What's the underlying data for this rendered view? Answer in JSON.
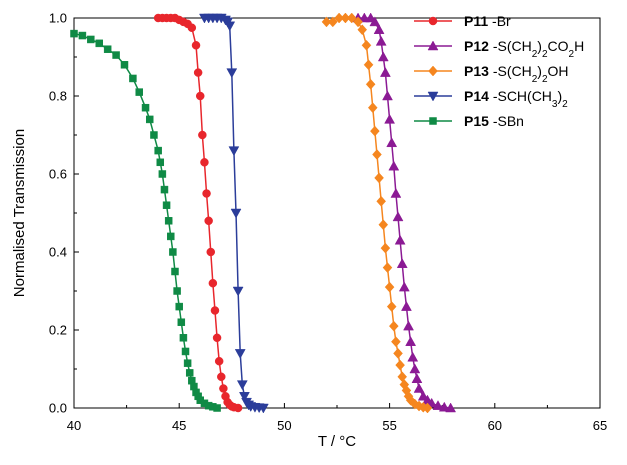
{
  "chart_data": {
    "type": "scatter",
    "title": "",
    "xlabel": "T / °C",
    "ylabel": "Normalised Transmission",
    "xlim": [
      40,
      65
    ],
    "ylim": [
      0.0,
      1.0
    ],
    "x_ticks": [
      40,
      45,
      50,
      55,
      60,
      65
    ],
    "x_tick_labels": [
      "40",
      "45",
      "50",
      "55",
      "60",
      "65"
    ],
    "y_ticks": [
      0.0,
      0.2,
      0.4,
      0.6,
      0.8,
      1.0
    ],
    "y_tick_labels": [
      "0.0",
      "0.2",
      "0.4",
      "0.6",
      "0.8",
      "1.0"
    ],
    "grid": false,
    "legend_position": "top-right",
    "series": [
      {
        "id": "P11",
        "name": "P11",
        "label_suffix": "-Br",
        "label_suffix_parts": [
          [
            "-Br",
            "n"
          ]
        ],
        "color": "#e8262c",
        "marker": "circle",
        "x": [
          44.0,
          44.2,
          44.4,
          44.6,
          44.8,
          45.0,
          45.2,
          45.4,
          45.6,
          45.8,
          45.9,
          46.0,
          46.1,
          46.2,
          46.3,
          46.4,
          46.5,
          46.6,
          46.7,
          46.8,
          46.9,
          47.0,
          47.1,
          47.2,
          47.3,
          47.4,
          47.5,
          47.6,
          47.8
        ],
        "y": [
          1.0,
          1.0,
          1.0,
          1.0,
          1.0,
          0.995,
          0.99,
          0.985,
          0.975,
          0.93,
          0.86,
          0.8,
          0.7,
          0.63,
          0.55,
          0.48,
          0.4,
          0.32,
          0.25,
          0.18,
          0.12,
          0.08,
          0.05,
          0.03,
          0.015,
          0.008,
          0.004,
          0.002,
          0.0
        ]
      },
      {
        "id": "P12",
        "name": "P12",
        "label_suffix": "-S(CH2)2CO2H",
        "label_suffix_parts": [
          [
            "-S(CH",
            "n"
          ],
          [
            "2",
            "sub"
          ],
          [
            ")",
            "n"
          ],
          [
            "2",
            "sub"
          ],
          [
            "CO",
            "n"
          ],
          [
            "2",
            "sub"
          ],
          [
            "H",
            "n"
          ]
        ],
        "color": "#8b1a94",
        "marker": "triangle-up",
        "x": [
          53.5,
          53.8,
          54.1,
          54.3,
          54.5,
          54.6,
          54.7,
          54.8,
          54.9,
          55.0,
          55.1,
          55.2,
          55.3,
          55.4,
          55.5,
          55.6,
          55.7,
          55.8,
          55.9,
          56.0,
          56.1,
          56.2,
          56.3,
          56.4,
          56.6,
          56.8,
          57.0,
          57.3,
          57.6,
          57.9
        ],
        "y": [
          1.0,
          1.0,
          1.0,
          0.99,
          0.97,
          0.94,
          0.9,
          0.86,
          0.8,
          0.74,
          0.68,
          0.62,
          0.55,
          0.49,
          0.43,
          0.37,
          0.31,
          0.26,
          0.21,
          0.17,
          0.13,
          0.1,
          0.075,
          0.05,
          0.03,
          0.02,
          0.012,
          0.006,
          0.002,
          0.0
        ]
      },
      {
        "id": "P13",
        "name": "P13",
        "label_suffix": "-S(CH2)2OH",
        "label_suffix_parts": [
          [
            "-S(CH",
            "n"
          ],
          [
            "2",
            "sub"
          ],
          [
            ")",
            "n"
          ],
          [
            "2",
            "sub"
          ],
          [
            "OH",
            "n"
          ]
        ],
        "color": "#f5861f",
        "marker": "diamond",
        "x": [
          52.0,
          52.3,
          52.6,
          52.9,
          53.2,
          53.5,
          53.7,
          53.9,
          54.0,
          54.1,
          54.2,
          54.3,
          54.4,
          54.5,
          54.6,
          54.7,
          54.8,
          54.9,
          55.0,
          55.1,
          55.2,
          55.3,
          55.4,
          55.5,
          55.6,
          55.7,
          55.8,
          55.9,
          56.0,
          56.2,
          56.4,
          56.6,
          56.8
        ],
        "y": [
          0.99,
          0.99,
          1.0,
          1.0,
          1.0,
          0.99,
          0.97,
          0.93,
          0.88,
          0.83,
          0.77,
          0.71,
          0.65,
          0.59,
          0.53,
          0.47,
          0.41,
          0.36,
          0.31,
          0.26,
          0.21,
          0.17,
          0.14,
          0.11,
          0.08,
          0.06,
          0.045,
          0.03,
          0.02,
          0.01,
          0.005,
          0.002,
          0.0
        ]
      },
      {
        "id": "P14",
        "name": "P14",
        "label_suffix": "-SCH(CH3)2",
        "label_suffix_parts": [
          [
            "-SCH(CH",
            "n"
          ],
          [
            "3",
            "sub"
          ],
          [
            ")",
            "n"
          ],
          [
            "2",
            "sub"
          ]
        ],
        "color": "#2b3d9a",
        "marker": "triangle-down",
        "x": [
          46.2,
          46.4,
          46.6,
          46.8,
          47.0,
          47.2,
          47.3,
          47.4,
          47.5,
          47.6,
          47.7,
          47.8,
          47.9,
          48.0,
          48.1,
          48.2,
          48.3,
          48.4,
          48.6,
          48.8,
          49.0
        ],
        "y": [
          1.0,
          1.0,
          1.0,
          1.0,
          1.0,
          0.995,
          0.99,
          0.98,
          0.86,
          0.66,
          0.5,
          0.3,
          0.14,
          0.06,
          0.03,
          0.015,
          0.008,
          0.004,
          0.002,
          0.001,
          0.0
        ]
      },
      {
        "id": "P15",
        "name": "P15",
        "label_suffix": "-SBn",
        "label_suffix_parts": [
          [
            "-SBn",
            "n"
          ]
        ],
        "color": "#0f8a45",
        "marker": "square",
        "x": [
          40.0,
          40.4,
          40.8,
          41.2,
          41.6,
          42.0,
          42.4,
          42.8,
          43.1,
          43.4,
          43.6,
          43.8,
          44.0,
          44.1,
          44.2,
          44.3,
          44.4,
          44.5,
          44.6,
          44.7,
          44.8,
          44.9,
          45.0,
          45.1,
          45.2,
          45.3,
          45.4,
          45.5,
          45.6,
          45.7,
          45.8,
          45.9,
          46.0,
          46.2,
          46.4,
          46.6,
          46.8
        ],
        "y": [
          0.96,
          0.955,
          0.945,
          0.935,
          0.92,
          0.905,
          0.88,
          0.845,
          0.81,
          0.77,
          0.74,
          0.7,
          0.66,
          0.63,
          0.6,
          0.56,
          0.52,
          0.48,
          0.44,
          0.4,
          0.35,
          0.3,
          0.26,
          0.22,
          0.18,
          0.145,
          0.115,
          0.09,
          0.07,
          0.055,
          0.04,
          0.03,
          0.02,
          0.012,
          0.006,
          0.003,
          0.0
        ]
      }
    ]
  }
}
